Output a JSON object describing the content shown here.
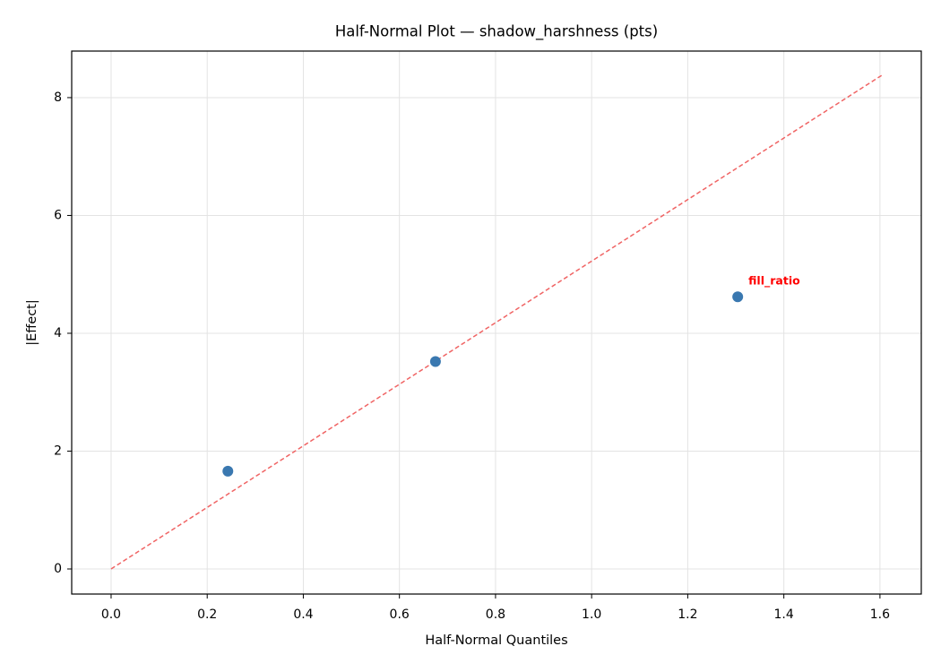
{
  "chart_data": {
    "type": "scatter",
    "title": "Half-Normal Plot — shadow_harshness (pts)",
    "x_label": "Half-Normal Quantiles",
    "y_label": "|Effect|",
    "x": [
      0.243,
      0.675,
      1.304
    ],
    "values": [
      1.66,
      3.52,
      4.62
    ],
    "color": "#3a78b0",
    "reference_line": {
      "x": [
        0,
        1.604
      ],
      "values": [
        0,
        8.38
      ],
      "color": "#f06464"
    },
    "annotations": [
      {
        "text": "fill_ratio",
        "index": 2,
        "color": "#ff0000"
      }
    ],
    "xlim": [
      -0.082,
      1.686
    ],
    "ylim": [
      -0.426,
      8.79
    ],
    "xticks": [
      {
        "value": 0,
        "label": "0.0"
      },
      0.2,
      0.4,
      0.6,
      0.8,
      {
        "value": 1,
        "label": "1.0"
      },
      1.2,
      1.4,
      1.6
    ],
    "yticks": [
      0,
      2,
      4,
      6,
      8
    ],
    "grid": true
  }
}
